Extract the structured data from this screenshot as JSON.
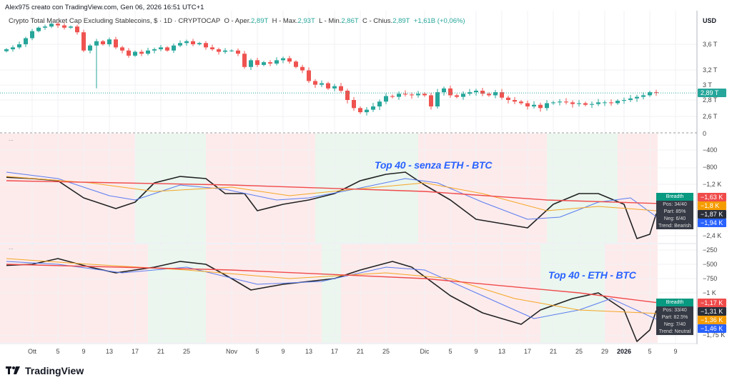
{
  "header": {
    "credit": "Alex975 creato con TradingView.com, Gen 06, 2026 16:51 UTC+1",
    "symbol": "Crypto Total Market Cap Excluding Stablecoins, $ · 1D · CRYPTOCAP",
    "o_label": "O - Aper.",
    "o": "2,89T",
    "h_label": "H - Max.",
    "h": "2,93T",
    "l_label": "L - Min.",
    "l": "2,86T",
    "c_label": "C - Chius.",
    "c": "2,89T",
    "change": "+1,61B (+0,06%)"
  },
  "price_axis": {
    "currency": "USD",
    "labels": [
      "3,6 T",
      "3,2 T",
      "3 T",
      "2,8 T",
      "2,6 T"
    ],
    "last_tag": "2,89 T"
  },
  "pane2_axis": {
    "labels": [
      "0",
      "−400",
      "−800",
      "−1,2 K",
      "−2,4 K"
    ],
    "tags": [
      "−1,63 K",
      "−1,8 K",
      "−1,87 K",
      "−1,94 K"
    ]
  },
  "pane3_axis": {
    "labels": [
      "−250",
      "−500",
      "−750",
      "−1 K",
      "−1,75 K"
    ],
    "tags": [
      "−1,17 K",
      "−1,31 K",
      "−1,36 K",
      "−1,46 K"
    ]
  },
  "time_axis": [
    "Ott",
    "5",
    "9",
    "13",
    "17",
    "21",
    "25",
    "Nov",
    "5",
    "9",
    "13",
    "17",
    "21",
    "25",
    "Dic",
    "5",
    "9",
    "13",
    "17",
    "21",
    "25",
    "29",
    "2026",
    "5",
    "9"
  ],
  "pane2": {
    "note": "Top 40 -  senza ETH - BTC",
    "breadth": {
      "title": "Breadth",
      "pos": "Pos: 34/40",
      "part": "Part: 85%",
      "neg": "Neg: 6/40",
      "trend": "Trend: Bearish"
    }
  },
  "pane3": {
    "note": "Top 40 - ETH - BTC",
    "breadth": {
      "title": "Breadth",
      "pos": "Pos: 33/40",
      "part": "Part: 82.5%",
      "neg": "Neg: 7/40",
      "trend": "Trend: Neutral"
    }
  },
  "pane_menu": "...",
  "brand": "TradingView",
  "colors": {
    "up": "#26a69a",
    "down": "#ef5350",
    "black": "#222222",
    "blue": "#5b7cf0",
    "orange": "#f5a623",
    "red": "#f04b4b"
  },
  "chart_data": {
    "type": "candlestick",
    "start_day_offset": -4,
    "closes_T": [
      3.52,
      3.55,
      3.6,
      3.7,
      3.82,
      3.88,
      3.9,
      3.95,
      3.92,
      3.88,
      3.9,
      3.8,
      3.5,
      3.58,
      3.65,
      3.6,
      3.68,
      3.55,
      3.5,
      3.42,
      3.48,
      3.45,
      3.5,
      3.52,
      3.55,
      3.5,
      3.58,
      3.62,
      3.65,
      3.6,
      3.62,
      3.55,
      3.52,
      3.48,
      3.5,
      3.5,
      3.45,
      3.25,
      3.35,
      3.28,
      3.32,
      3.3,
      3.35,
      3.38,
      3.33,
      3.25,
      3.2,
      3.05,
      3.0,
      3.02,
      2.95,
      2.98,
      2.92,
      2.8,
      2.7,
      2.65,
      2.68,
      2.72,
      2.78,
      2.85,
      2.84,
      2.88,
      2.87,
      2.86,
      2.88,
      2.86,
      2.72,
      2.9,
      2.95,
      2.86,
      2.84,
      2.88,
      2.9,
      2.92,
      2.88,
      2.86,
      2.9,
      2.83,
      2.8,
      2.78,
      2.76,
      2.72,
      2.74,
      2.7,
      2.76,
      2.77,
      2.78,
      2.77,
      2.75,
      2.76,
      2.74,
      2.75,
      2.77,
      2.77,
      2.76,
      2.79,
      2.8,
      2.82,
      2.84,
      2.86,
      2.9,
      2.89
    ],
    "pane2_series": [
      {
        "name": "black",
        "points": [
          [
            -4,
            -1020
          ],
          [
            0,
            -1050
          ],
          [
            4,
            -1100
          ],
          [
            8,
            -1500
          ],
          [
            13,
            -1750
          ],
          [
            16,
            -1600
          ],
          [
            19,
            -1150
          ],
          [
            23,
            -1000
          ],
          [
            27,
            -1050
          ],
          [
            30,
            -1400
          ],
          [
            33,
            -1400
          ],
          [
            35,
            -1800
          ],
          [
            39,
            -1650
          ],
          [
            43,
            -1550
          ],
          [
            47,
            -1400
          ],
          [
            51,
            -1100
          ],
          [
            55,
            -950
          ],
          [
            58,
            -900
          ],
          [
            61,
            -1200
          ],
          [
            65,
            -1550
          ],
          [
            69,
            -2000
          ],
          [
            73,
            -2100
          ],
          [
            77,
            -2200
          ],
          [
            81,
            -1650
          ],
          [
            85,
            -1400
          ],
          [
            88,
            -1400
          ],
          [
            92,
            -1650
          ],
          [
            94,
            -2450
          ],
          [
            96,
            -2350
          ],
          [
            97,
            -1870
          ]
        ]
      },
      {
        "name": "blue",
        "points": [
          [
            -4,
            -900
          ],
          [
            4,
            -1050
          ],
          [
            12,
            -1450
          ],
          [
            16,
            -1550
          ],
          [
            23,
            -1200
          ],
          [
            30,
            -1300
          ],
          [
            38,
            -1550
          ],
          [
            43,
            -1500
          ],
          [
            50,
            -1300
          ],
          [
            58,
            -1050
          ],
          [
            63,
            -1150
          ],
          [
            70,
            -1600
          ],
          [
            77,
            -2000
          ],
          [
            82,
            -1950
          ],
          [
            88,
            -1600
          ],
          [
            93,
            -1500
          ],
          [
            97,
            -1940
          ]
        ]
      },
      {
        "name": "orange",
        "points": [
          [
            -4,
            -1000
          ],
          [
            9,
            -1150
          ],
          [
            19,
            -1350
          ],
          [
            31,
            -1250
          ],
          [
            40,
            -1450
          ],
          [
            50,
            -1300
          ],
          [
            61,
            -1150
          ],
          [
            70,
            -1400
          ],
          [
            80,
            -1800
          ],
          [
            88,
            -1700
          ],
          [
            97,
            -1800
          ]
        ]
      },
      {
        "name": "red",
        "points": [
          [
            -4,
            -1100
          ],
          [
            31,
            -1200
          ],
          [
            61,
            -1350
          ],
          [
            80,
            -1550
          ],
          [
            97,
            -1630
          ]
        ]
      }
    ],
    "pane3_series": [
      {
        "name": "black",
        "points": [
          [
            -4,
            -520
          ],
          [
            0,
            -500
          ],
          [
            4,
            -400
          ],
          [
            9,
            -550
          ],
          [
            13,
            -650
          ],
          [
            19,
            -550
          ],
          [
            23,
            -450
          ],
          [
            27,
            -500
          ],
          [
            31,
            -750
          ],
          [
            34,
            -950
          ],
          [
            39,
            -850
          ],
          [
            43,
            -800
          ],
          [
            47,
            -750
          ],
          [
            51,
            -600
          ],
          [
            56,
            -450
          ],
          [
            59,
            -550
          ],
          [
            65,
            -1050
          ],
          [
            70,
            -1350
          ],
          [
            73,
            -1450
          ],
          [
            76,
            -1550
          ],
          [
            79,
            -1300
          ],
          [
            84,
            -1100
          ],
          [
            88,
            -1000
          ],
          [
            92,
            -1300
          ],
          [
            94,
            -1850
          ],
          [
            96,
            -1650
          ],
          [
            97,
            -1310
          ]
        ]
      },
      {
        "name": "blue",
        "points": [
          [
            -4,
            -450
          ],
          [
            4,
            -500
          ],
          [
            14,
            -650
          ],
          [
            24,
            -550
          ],
          [
            35,
            -850
          ],
          [
            45,
            -800
          ],
          [
            55,
            -550
          ],
          [
            61,
            -600
          ],
          [
            70,
            -1050
          ],
          [
            78,
            -1450
          ],
          [
            85,
            -1300
          ],
          [
            90,
            -1100
          ],
          [
            97,
            -1460
          ]
        ]
      },
      {
        "name": "orange",
        "points": [
          [
            -4,
            -400
          ],
          [
            9,
            -500
          ],
          [
            24,
            -600
          ],
          [
            40,
            -750
          ],
          [
            55,
            -650
          ],
          [
            65,
            -750
          ],
          [
            75,
            -1100
          ],
          [
            85,
            -1300
          ],
          [
            97,
            -1360
          ]
        ]
      },
      {
        "name": "red",
        "points": [
          [
            -4,
            -500
          ],
          [
            31,
            -600
          ],
          [
            61,
            -750
          ],
          [
            85,
            -1000
          ],
          [
            97,
            -1170
          ]
        ]
      }
    ],
    "pane2_bullish_ranges_days": [
      [
        16,
        27
      ],
      [
        44,
        60
      ],
      [
        80,
        91
      ]
    ],
    "pane3_bullish_ranges_days": [
      [
        18,
        27
      ],
      [
        45,
        48
      ],
      [
        79,
        89
      ]
    ]
  }
}
